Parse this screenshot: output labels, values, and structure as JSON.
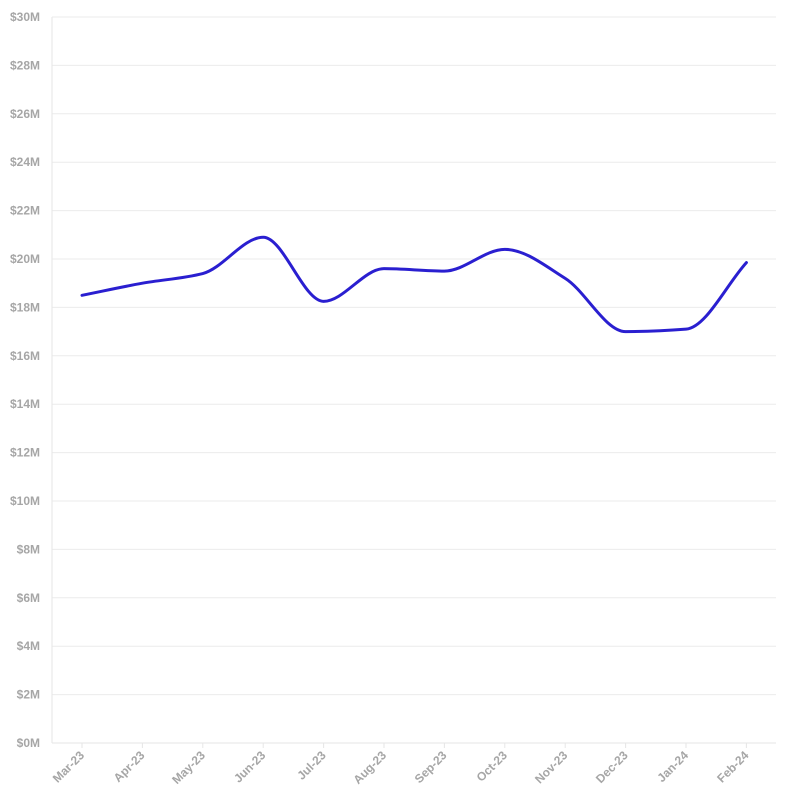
{
  "chart_data": {
    "type": "line",
    "categories": [
      "Mar-23",
      "Apr-23",
      "May-23",
      "Jun-23",
      "Jul-23",
      "Aug-23",
      "Sep-23",
      "Oct-23",
      "Nov-23",
      "Dec-23",
      "Jan-24",
      "Feb-24"
    ],
    "series": [
      {
        "values": [
          18.5,
          19.0,
          19.4,
          20.9,
          18.25,
          19.6,
          19.5,
          20.4,
          19.2,
          17.0,
          17.1,
          19.85
        ]
      }
    ],
    "y_ticks": [
      0,
      2,
      4,
      6,
      8,
      10,
      12,
      14,
      16,
      18,
      20,
      22,
      24,
      26,
      28,
      30
    ],
    "y_tick_labels": [
      "$0M",
      "$2M",
      "$4M",
      "$6M",
      "$8M",
      "$10M",
      "$12M",
      "$14M",
      "$16M",
      "$18M",
      "$20M",
      "$22M",
      "$24M",
      "$26M",
      "$28M",
      "$30M"
    ],
    "ylim": [
      0,
      30
    ],
    "title": "",
    "xlabel": "",
    "ylabel": "",
    "grid": true,
    "line_color": "#2a1fd0"
  }
}
